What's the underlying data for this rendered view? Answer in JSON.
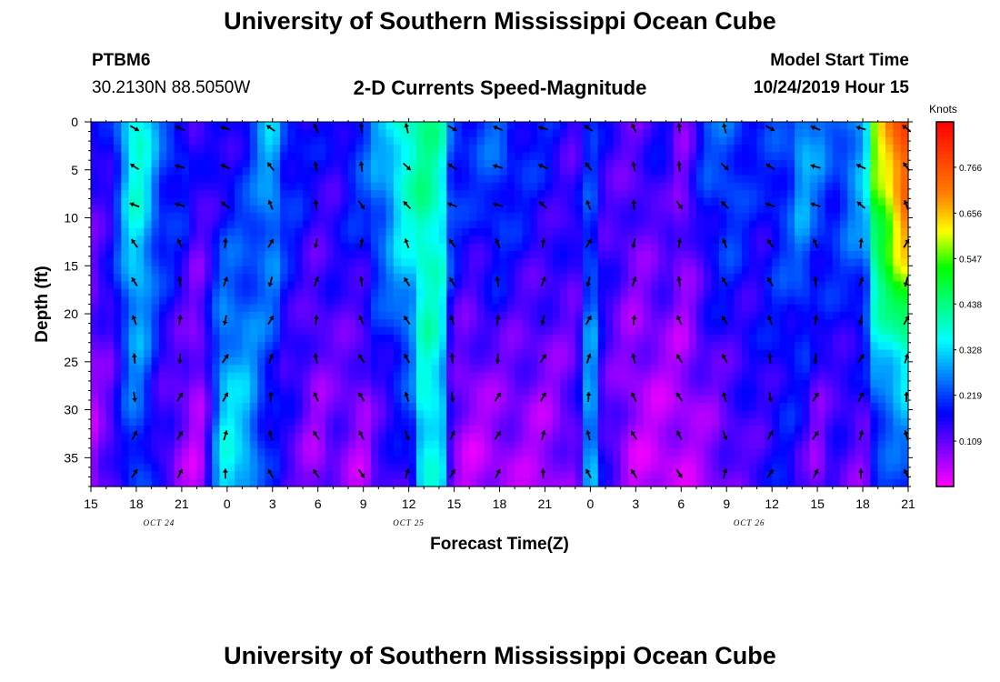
{
  "header": {
    "title": "University of Southern Mississippi Ocean Cube",
    "station_id": "PTBM6",
    "station_coords": "30.2130N 88.5050W",
    "subtitle": "2-D Currents Speed-Magnitude",
    "model_label": "Model Start Time",
    "model_value": "10/24/2019 Hour 15"
  },
  "footer": {
    "title": "University of Southern Mississippi Ocean Cube"
  },
  "chart_data": {
    "type": "heatmap",
    "title": "2-D Currents Speed-Magnitude",
    "xlabel": "Forecast Time(Z)",
    "ylabel": "Depth (ft)",
    "x_tick_labels": [
      "15",
      "18",
      "21",
      "0",
      "3",
      "6",
      "9",
      "12",
      "15",
      "18",
      "21",
      "0",
      "3",
      "6",
      "9",
      "12",
      "15",
      "18",
      "21"
    ],
    "x_hours": [
      0,
      3,
      6,
      9,
      12,
      15,
      18,
      21,
      24,
      27,
      30,
      33,
      36,
      39,
      42,
      45,
      48,
      51,
      54
    ],
    "xlim_hours": [
      0,
      54
    ],
    "date_labels": [
      {
        "text": "OCT 24",
        "hour": 4.5
      },
      {
        "text": "OCT 25",
        "hour": 21
      },
      {
        "text": "OCT 26",
        "hour": 43.5
      }
    ],
    "y_ticks": [
      0,
      5,
      10,
      15,
      20,
      25,
      30,
      35
    ],
    "ylim": [
      0,
      38
    ],
    "y_inverted": true,
    "colorbar": {
      "unit": "Knots",
      "ticks": [
        0.109,
        0.219,
        0.328,
        0.438,
        0.547,
        0.656,
        0.766
      ],
      "range": [
        0,
        0.875
      ],
      "colors": [
        "#ff00ff",
        "#8000ff",
        "#0000ff",
        "#0080ff",
        "#00ffff",
        "#00ff80",
        "#00ff00",
        "#ffff00",
        "#ff8000",
        "#ff4000",
        "#ff0000"
      ]
    },
    "speed_profiles": [
      {
        "hour": 0,
        "top": 0.14,
        "bottom": 0.06
      },
      {
        "hour": 1,
        "top": 0.16,
        "bottom": 0.1
      },
      {
        "hour": 3,
        "top": 0.38,
        "bottom": 0.22
      },
      {
        "hour": 5,
        "top": 0.22,
        "bottom": 0.12
      },
      {
        "hour": 6,
        "top": 0.2,
        "bottom": 0.08
      },
      {
        "hour": 7,
        "top": 0.14,
        "bottom": 0.05
      },
      {
        "hour": 9,
        "top": 0.16,
        "bottom": 0.35
      },
      {
        "hour": 10,
        "top": 0.18,
        "bottom": 0.32
      },
      {
        "hour": 12,
        "top": 0.3,
        "bottom": 0.17
      },
      {
        "hour": 13,
        "top": 0.2,
        "bottom": 0.13
      },
      {
        "hour": 15,
        "top": 0.16,
        "bottom": 0.07
      },
      {
        "hour": 16,
        "top": 0.16,
        "bottom": 0.1
      },
      {
        "hour": 18,
        "top": 0.22,
        "bottom": 0.06
      },
      {
        "hour": 19,
        "top": 0.28,
        "bottom": 0.12
      },
      {
        "hour": 21,
        "top": 0.4,
        "bottom": 0.16
      },
      {
        "hour": 22,
        "top": 0.42,
        "bottom": 0.36
      },
      {
        "hour": 23,
        "top": 0.4,
        "bottom": 0.34
      },
      {
        "hour": 24,
        "top": 0.22,
        "bottom": 0.07
      },
      {
        "hour": 25,
        "top": 0.2,
        "bottom": 0.05
      },
      {
        "hour": 27,
        "top": 0.24,
        "bottom": 0.06
      },
      {
        "hour": 28,
        "top": 0.2,
        "bottom": 0.07
      },
      {
        "hour": 30,
        "top": 0.18,
        "bottom": 0.06
      },
      {
        "hour": 32,
        "top": 0.14,
        "bottom": 0.1
      },
      {
        "hour": 33,
        "top": 0.2,
        "bottom": 0.32
      },
      {
        "hour": 34,
        "top": 0.14,
        "bottom": 0.12
      },
      {
        "hour": 36,
        "top": 0.12,
        "bottom": 0.05
      },
      {
        "hour": 38,
        "top": 0.16,
        "bottom": 0.04
      },
      {
        "hour": 39,
        "top": 0.1,
        "bottom": 0.05
      },
      {
        "hour": 41,
        "top": 0.22,
        "bottom": 0.08
      },
      {
        "hour": 42,
        "top": 0.24,
        "bottom": 0.1
      },
      {
        "hour": 44,
        "top": 0.18,
        "bottom": 0.14
      },
      {
        "hour": 46,
        "top": 0.22,
        "bottom": 0.17
      },
      {
        "hour": 47,
        "top": 0.3,
        "bottom": 0.14
      },
      {
        "hour": 48,
        "top": 0.26,
        "bottom": 0.08
      },
      {
        "hour": 49,
        "top": 0.22,
        "bottom": 0.13
      },
      {
        "hour": 51,
        "top": 0.3,
        "bottom": 0.1
      },
      {
        "hour": 52,
        "top": 0.6,
        "bottom": 0.2
      },
      {
        "hour": 54,
        "top": 0.8,
        "bottom": 0.22
      }
    ],
    "current_vectors": {
      "hours": [
        3,
        6,
        9,
        12,
        15,
        18,
        21,
        24,
        27,
        30,
        33,
        36,
        39,
        42,
        45,
        48,
        51,
        54
      ],
      "depths": [
        0,
        4,
        8,
        12,
        16,
        20,
        24,
        28,
        32,
        36
      ],
      "direction": "mostly northward and northwestward with depth-dependent rotation"
    }
  }
}
